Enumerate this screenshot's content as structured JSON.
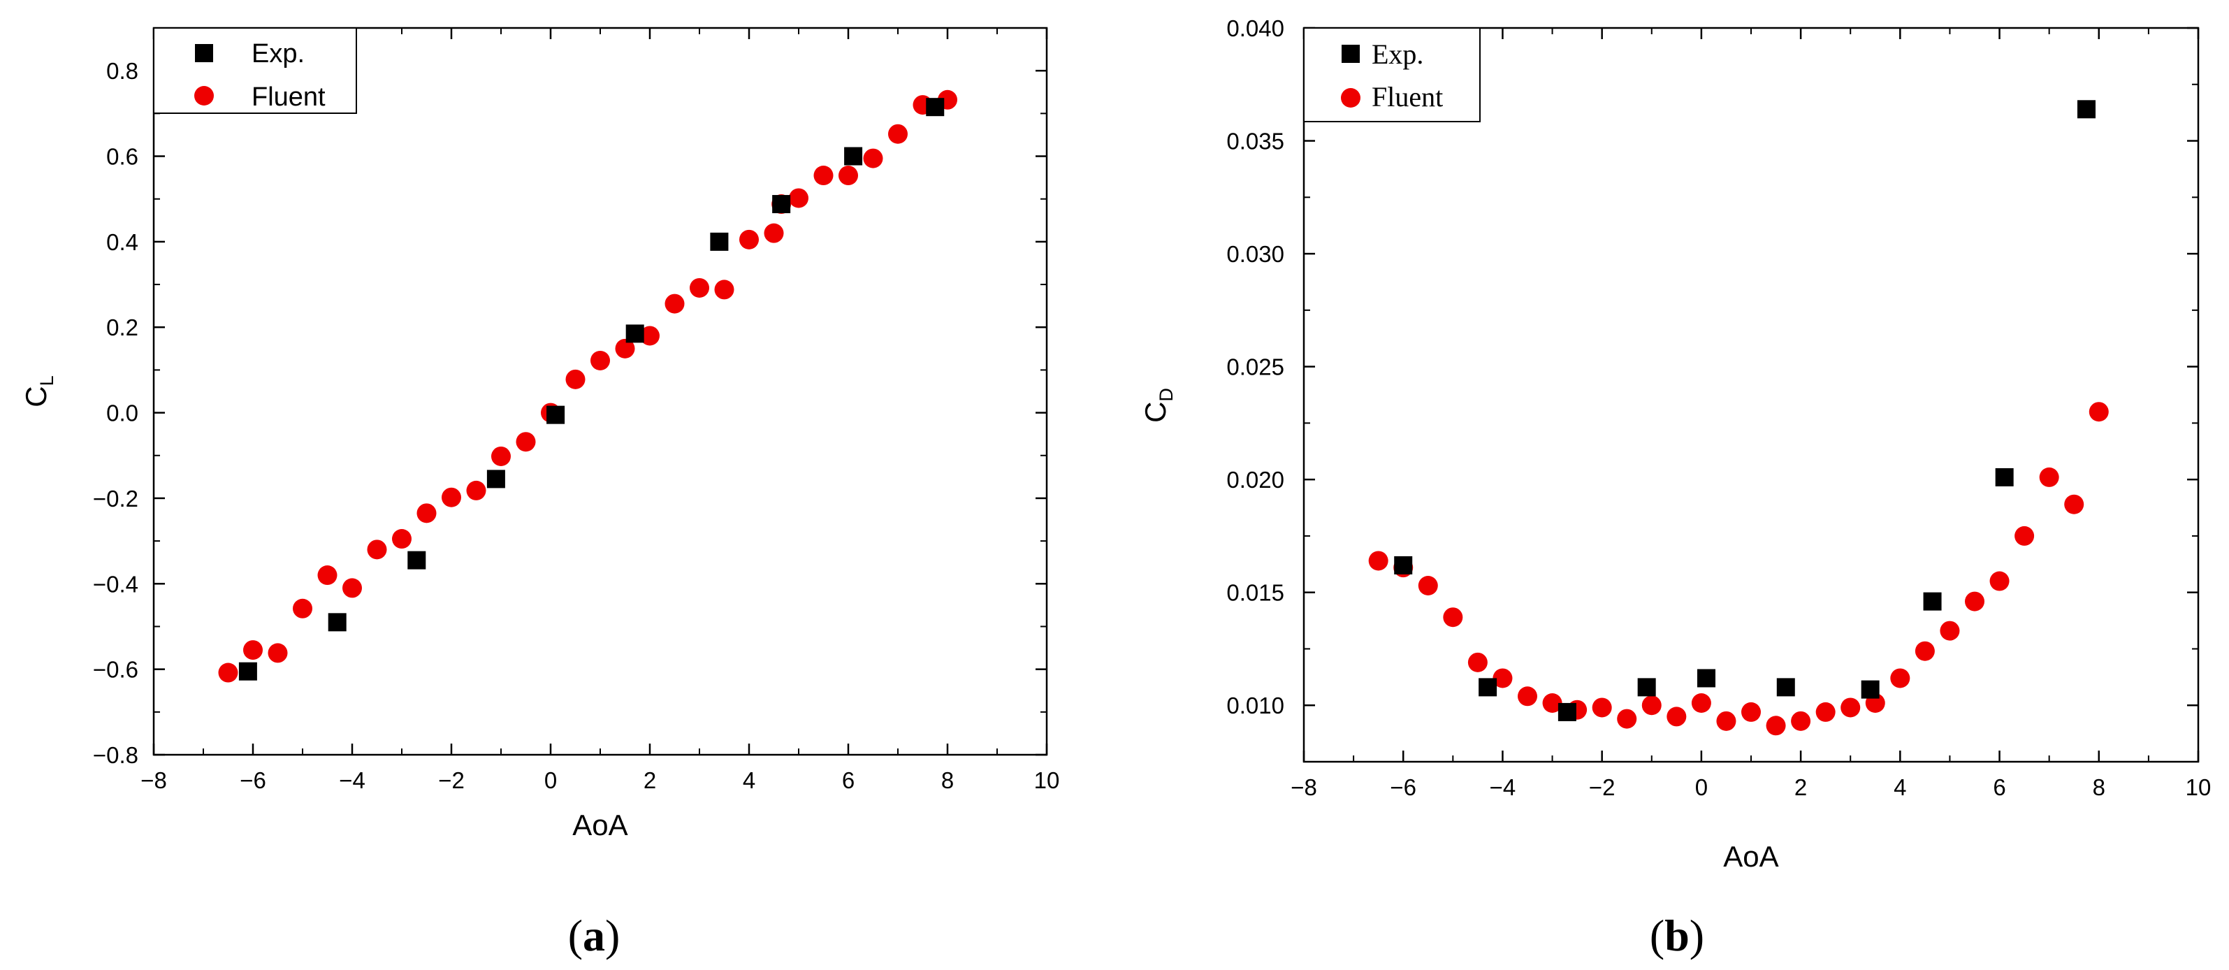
{
  "chart_data": [
    {
      "type": "scatter",
      "panel": "a",
      "caption": "(a)",
      "xlabel": "AoA",
      "ylabel": "C",
      "ylabel_subscript": "L",
      "xlim": [
        -8,
        10
      ],
      "ylim": [
        -0.8,
        0.9
      ],
      "xticks": [
        -8,
        -6,
        -4,
        -2,
        0,
        2,
        4,
        6,
        8,
        10
      ],
      "yticks": [
        -0.8,
        -0.6,
        -0.4,
        -0.2,
        0.0,
        0.2,
        0.4,
        0.6,
        0.8
      ],
      "xtick_labels": [
        "−8",
        "−6",
        "−4",
        "−2",
        "0",
        "2",
        "4",
        "6",
        "8",
        "10"
      ],
      "ytick_labels": [
        "−0.8",
        "−0.6",
        "−0.4",
        "−0.2",
        "0.0",
        "0.2",
        "0.4",
        "0.6",
        "0.8"
      ],
      "legend_position": "top-left",
      "series": [
        {
          "name": "Exp.",
          "marker": "square",
          "color": "#000000",
          "x": [
            -6.1,
            -4.3,
            -2.7,
            -1.1,
            0.1,
            1.7,
            3.4,
            4.65,
            6.1,
            7.75
          ],
          "y": [
            -0.605,
            -0.49,
            -0.345,
            -0.155,
            -0.005,
            0.185,
            0.4,
            0.488,
            0.6,
            0.715
          ]
        },
        {
          "name": "Fluent",
          "marker": "circle",
          "color": "#ee0000",
          "x": [
            -6.5,
            -6.0,
            -5.5,
            -5.0,
            -4.5,
            -4.0,
            -3.5,
            -3.0,
            -2.5,
            -2.0,
            -1.5,
            -1.0,
            -0.5,
            0.0,
            0.5,
            1.0,
            1.5,
            2.0,
            2.5,
            3.0,
            3.5,
            4.0,
            4.5,
            4.65,
            5.0,
            5.5,
            6.0,
            6.5,
            7.0,
            7.5,
            8.0
          ],
          "y": [
            -0.608,
            -0.555,
            -0.562,
            -0.458,
            -0.38,
            -0.41,
            -0.32,
            -0.295,
            -0.235,
            -0.198,
            -0.182,
            -0.102,
            -0.068,
            0.0,
            0.078,
            0.122,
            0.15,
            0.18,
            0.255,
            0.292,
            0.288,
            0.405,
            0.42,
            0.488,
            0.502,
            0.555,
            0.555,
            0.595,
            0.652,
            0.72,
            0.732
          ]
        }
      ]
    },
    {
      "type": "scatter",
      "panel": "b",
      "caption": "(b)",
      "xlabel": "AoA",
      "ylabel": "C",
      "ylabel_subscript": "D",
      "xlim": [
        -8,
        10
      ],
      "ylim": [
        0.0075,
        0.04
      ],
      "xticks": [
        -8,
        -6,
        -4,
        -2,
        0,
        2,
        4,
        6,
        8,
        10
      ],
      "yticks": [
        0.01,
        0.015,
        0.02,
        0.025,
        0.03,
        0.035,
        0.04
      ],
      "xtick_labels": [
        "−8",
        "−6",
        "−4",
        "−2",
        "0",
        "2",
        "4",
        "6",
        "8",
        "10"
      ],
      "ytick_labels": [
        "0.010",
        "0.015",
        "0.020",
        "0.025",
        "0.030",
        "0.035",
        "0.040"
      ],
      "legend_position": "top-left",
      "series": [
        {
          "name": "Exp.",
          "marker": "square",
          "color": "#000000",
          "x": [
            -6.0,
            -4.3,
            -2.7,
            -1.1,
            0.1,
            1.7,
            3.4,
            4.65,
            6.1,
            7.75
          ],
          "y": [
            0.0162,
            0.0108,
            0.0097,
            0.0108,
            0.0112,
            0.0108,
            0.0107,
            0.0146,
            0.0201,
            0.0364
          ]
        },
        {
          "name": "Fluent",
          "marker": "circle",
          "color": "#ee0000",
          "x": [
            -6.5,
            -6.0,
            -5.5,
            -5.0,
            -4.5,
            -4.0,
            -3.5,
            -3.0,
            -2.5,
            -2.0,
            -1.5,
            -1.0,
            -0.5,
            0.0,
            0.5,
            1.0,
            1.5,
            2.0,
            2.5,
            3.0,
            3.5,
            4.0,
            4.5,
            5.0,
            5.5,
            6.0,
            6.5,
            7.0,
            7.5,
            8.0
          ],
          "y": [
            0.0164,
            0.0161,
            0.0153,
            0.0139,
            0.0119,
            0.0112,
            0.0104,
            0.0101,
            0.0098,
            0.0099,
            0.0094,
            0.01,
            0.0095,
            0.0101,
            0.0093,
            0.0097,
            0.0091,
            0.0093,
            0.0097,
            0.0099,
            0.0101,
            0.0112,
            0.0124,
            0.0133,
            0.0146,
            0.0155,
            0.0175,
            0.0201,
            0.0189,
            0.023
          ]
        }
      ]
    }
  ]
}
